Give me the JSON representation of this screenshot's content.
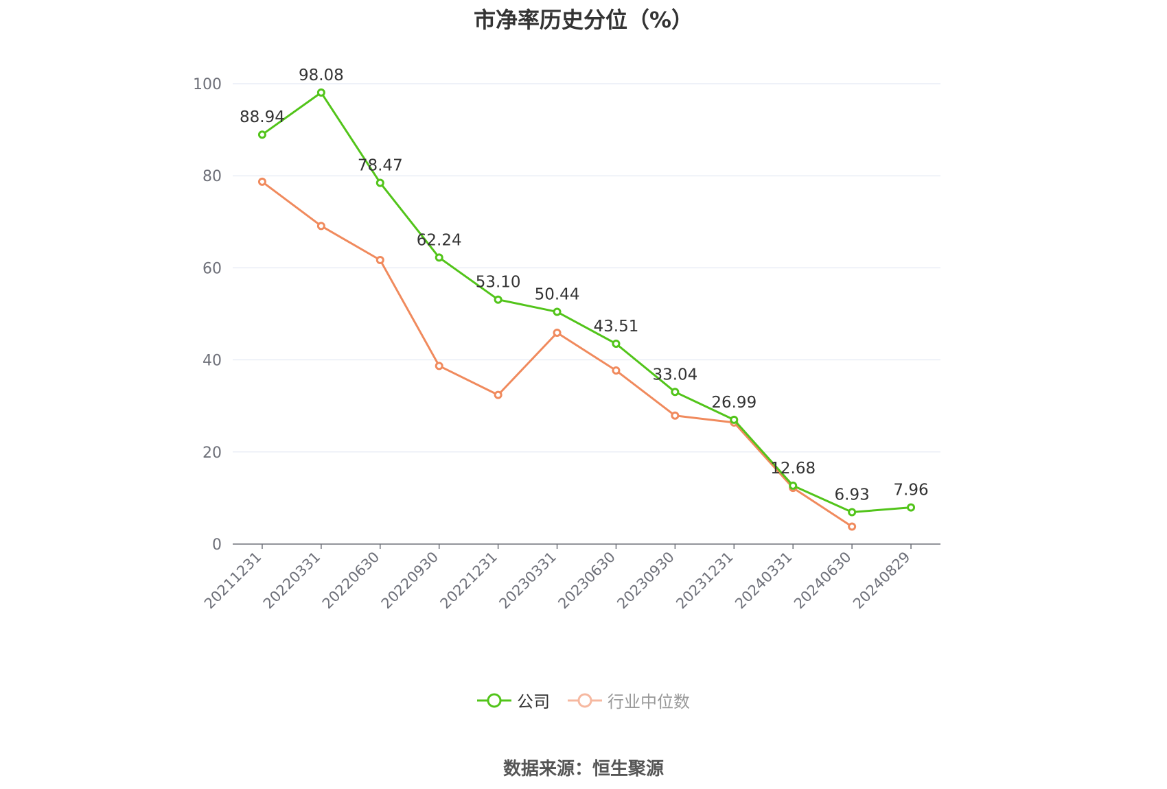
{
  "chart_data": {
    "type": "line",
    "title": "市净率历史分位（%）",
    "xlabel": "",
    "ylabel": "",
    "ylim": [
      0,
      100
    ],
    "y_ticks": [
      0,
      20,
      40,
      60,
      80,
      100
    ],
    "grid": true,
    "legend_position": "bottom",
    "categories": [
      "20211231",
      "20220331",
      "20220630",
      "20220930",
      "20221231",
      "20230331",
      "20230630",
      "20230930",
      "20231231",
      "20240331",
      "20240630",
      "20240829"
    ],
    "series": [
      {
        "name": "公司",
        "color": "#52c41a",
        "values": [
          88.94,
          98.08,
          78.47,
          62.24,
          53.1,
          50.44,
          43.51,
          33.04,
          26.99,
          12.68,
          6.93,
          7.96
        ],
        "labels": [
          "88.94",
          "98.08",
          "78.47",
          "62.24",
          "53.10",
          "50.44",
          "43.51",
          "33.04",
          "26.99",
          "12.68",
          "6.93",
          "7.96"
        ]
      },
      {
        "name": "行业中位数",
        "color": "#f08a5d",
        "values": [
          78.7,
          69.1,
          61.7,
          38.7,
          32.4,
          45.9,
          37.7,
          27.9,
          26.4,
          12.2,
          3.8,
          null
        ]
      }
    ],
    "source": "数据来源：恒生聚源"
  }
}
